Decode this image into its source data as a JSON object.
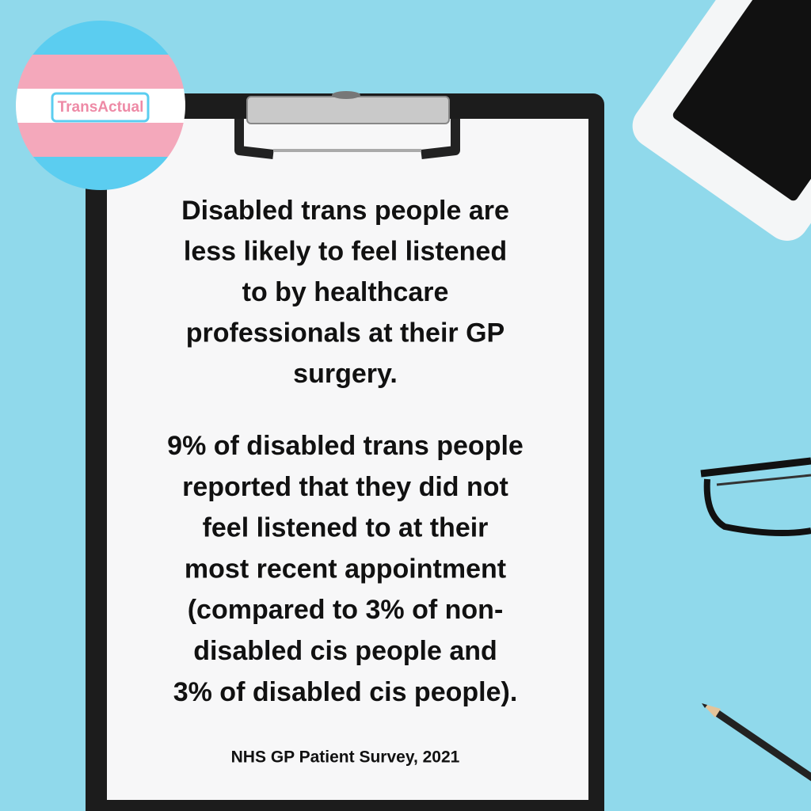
{
  "logo": {
    "text": "TransActual"
  },
  "heading": {
    "lines": [
      "Disabled trans people are",
      "less likely to feel listened",
      "to by healthcare",
      "professionals at their GP",
      "surgery."
    ]
  },
  "body": {
    "lines": [
      "9% of disabled trans people",
      "reported that they did not",
      "feel listened to at their",
      "most recent appointment",
      "(compared to 3% of non-",
      "disabled cis people and",
      "3% of disabled cis people)."
    ]
  },
  "source": "NHS GP Patient Survey, 2021"
}
